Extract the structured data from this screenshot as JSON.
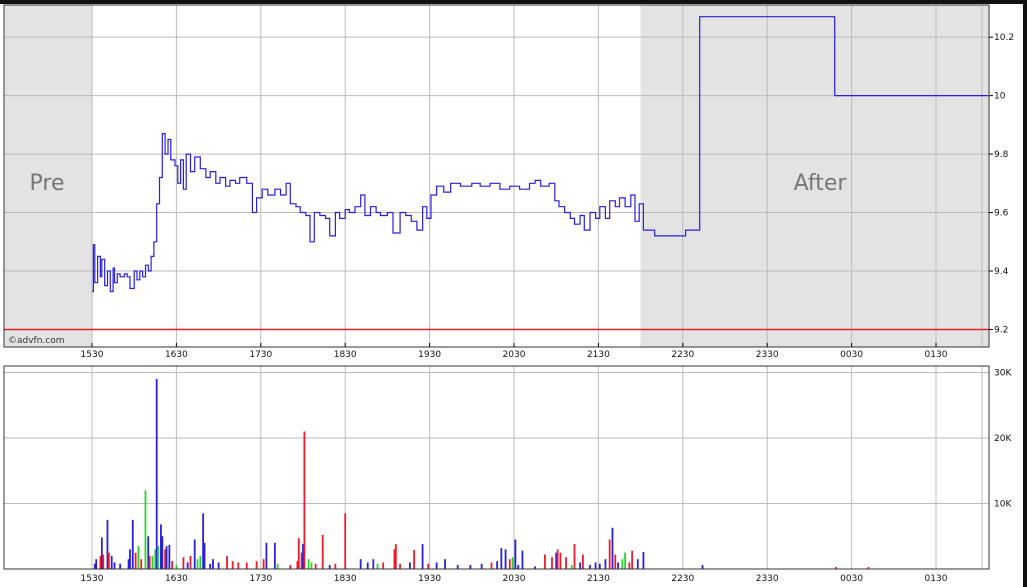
{
  "chart_data": [
    {
      "type": "line",
      "step": true,
      "panel": "price",
      "x_axis": {
        "ticks": [
          "1530",
          "1630",
          "1730",
          "1830",
          "1930",
          "2030",
          "2130",
          "2230",
          "2330",
          "0030",
          "0130"
        ]
      },
      "y_axis": {
        "ticks": [
          9.2,
          9.4,
          9.6,
          9.8,
          10,
          10.2
        ],
        "tick_labels": [
          "9.2",
          "9.4",
          "9.6",
          "9.8",
          "10",
          "10.2"
        ],
        "range": [
          9.14,
          10.31
        ],
        "position": "right"
      },
      "grid": true,
      "sessions": [
        {
          "label": "Pre",
          "start": "14:28",
          "end": "15:30",
          "color": "#e3e3e3"
        },
        {
          "label": "After",
          "start": "22:00",
          "end": "02:15",
          "color": "#e3e3e3"
        }
      ],
      "reference_line": {
        "value": 9.2,
        "color": "#e8202a"
      },
      "line_color": "#2a1fe0",
      "credit": "©advfn.com",
      "points": [
        [
          "15:30",
          9.33
        ],
        [
          "15:31",
          9.49
        ],
        [
          "15:32",
          9.36
        ],
        [
          "15:34",
          9.45
        ],
        [
          "15:36",
          9.38
        ],
        [
          "15:37",
          9.44
        ],
        [
          "15:39",
          9.35
        ],
        [
          "15:41",
          9.4
        ],
        [
          "15:43",
          9.33
        ],
        [
          "15:45",
          9.41
        ],
        [
          "15:46",
          9.36
        ],
        [
          "15:48",
          9.39
        ],
        [
          "15:50",
          9.38
        ],
        [
          "15:53",
          9.39
        ],
        [
          "15:55",
          9.38
        ],
        [
          "15:57",
          9.34
        ],
        [
          "16:00",
          9.4
        ],
        [
          "16:02",
          9.37
        ],
        [
          "16:04",
          9.4
        ],
        [
          "16:06",
          9.38
        ],
        [
          "16:08",
          9.42
        ],
        [
          "16:10",
          9.4
        ],
        [
          "16:12",
          9.45
        ],
        [
          "16:14",
          9.5
        ],
        [
          "16:16",
          9.63
        ],
        [
          "16:18",
          9.72
        ],
        [
          "16:20",
          9.87
        ],
        [
          "16:22",
          9.8
        ],
        [
          "16:24",
          9.85
        ],
        [
          "16:26",
          9.78
        ],
        [
          "16:29",
          9.76
        ],
        [
          "16:31",
          9.7
        ],
        [
          "16:33",
          9.78
        ],
        [
          "16:35",
          9.68
        ],
        [
          "16:37",
          9.8
        ],
        [
          "16:40",
          9.74
        ],
        [
          "16:43",
          9.79
        ],
        [
          "16:47",
          9.75
        ],
        [
          "16:51",
          9.72
        ],
        [
          "16:54",
          9.74
        ],
        [
          "16:58",
          9.7
        ],
        [
          "17:01",
          9.72
        ],
        [
          "17:05",
          9.69
        ],
        [
          "17:08",
          9.71
        ],
        [
          "17:12",
          9.7
        ],
        [
          "17:15",
          9.72
        ],
        [
          "17:20",
          9.7
        ],
        [
          "17:24",
          9.6
        ],
        [
          "17:27",
          9.65
        ],
        [
          "17:31",
          9.68
        ],
        [
          "17:35",
          9.66
        ],
        [
          "17:40",
          9.68
        ],
        [
          "17:44",
          9.66
        ],
        [
          "17:48",
          9.7
        ],
        [
          "17:51",
          9.63
        ],
        [
          "17:55",
          9.62
        ],
        [
          "17:58",
          9.6
        ],
        [
          "18:02",
          9.59
        ],
        [
          "18:05",
          9.5
        ],
        [
          "18:08",
          9.6
        ],
        [
          "18:12",
          9.59
        ],
        [
          "18:16",
          9.58
        ],
        [
          "18:19",
          9.52
        ],
        [
          "18:23",
          9.6
        ],
        [
          "18:26",
          9.58
        ],
        [
          "18:30",
          9.61
        ],
        [
          "18:33",
          9.6
        ],
        [
          "18:37",
          9.62
        ],
        [
          "18:41",
          9.66
        ],
        [
          "18:44",
          9.59
        ],
        [
          "18:48",
          9.62
        ],
        [
          "18:52",
          9.6
        ],
        [
          "18:55",
          9.59
        ],
        [
          "19:00",
          9.6
        ],
        [
          "19:04",
          9.53
        ],
        [
          "19:09",
          9.6
        ],
        [
          "19:13",
          9.59
        ],
        [
          "19:17",
          9.57
        ],
        [
          "19:21",
          9.54
        ],
        [
          "19:25",
          9.62
        ],
        [
          "19:28",
          9.58
        ],
        [
          "19:31",
          9.66
        ],
        [
          "19:35",
          9.69
        ],
        [
          "19:40",
          9.67
        ],
        [
          "19:45",
          9.7
        ],
        [
          "19:52",
          9.69
        ],
        [
          "20:00",
          9.7
        ],
        [
          "20:06",
          9.69
        ],
        [
          "20:13",
          9.7
        ],
        [
          "20:20",
          9.68
        ],
        [
          "20:27",
          9.69
        ],
        [
          "20:34",
          9.68
        ],
        [
          "20:41",
          9.7
        ],
        [
          "20:45",
          9.71
        ],
        [
          "20:49",
          9.69
        ],
        [
          "20:55",
          9.7
        ],
        [
          "20:59",
          9.64
        ],
        [
          "21:02",
          9.62
        ],
        [
          "21:06",
          9.6
        ],
        [
          "21:10",
          9.58
        ],
        [
          "21:13",
          9.56
        ],
        [
          "21:17",
          9.59
        ],
        [
          "21:20",
          9.54
        ],
        [
          "21:24",
          9.6
        ],
        [
          "21:28",
          9.58
        ],
        [
          "21:31",
          9.62
        ],
        [
          "21:35",
          9.58
        ],
        [
          "21:38",
          9.64
        ],
        [
          "21:42",
          9.62
        ],
        [
          "21:45",
          9.65
        ],
        [
          "21:49",
          9.62
        ],
        [
          "21:53",
          9.66
        ],
        [
          "21:56",
          9.57
        ],
        [
          "21:59",
          9.63
        ],
        [
          "22:02",
          9.54
        ],
        [
          "22:10",
          9.52
        ],
        [
          "22:32",
          9.54
        ],
        [
          "22:42",
          10.27
        ],
        [
          "00:18",
          10.0
        ],
        [
          "02:07",
          10.0
        ]
      ]
    },
    {
      "type": "bar",
      "panel": "volume",
      "x_axis": {
        "ticks": [
          "1530",
          "1630",
          "1730",
          "1830",
          "1930",
          "2030",
          "2130",
          "2230",
          "2330",
          "0030",
          "0130"
        ]
      },
      "y_axis": {
        "ticks": [
          10000,
          20000,
          30000
        ],
        "tick_labels": [
          "10K",
          "20K",
          "30K"
        ],
        "range": [
          0,
          31000
        ],
        "position": "right"
      },
      "grid": true,
      "colors": {
        "blue": "#2a1fe0",
        "red": "#ee1c2a",
        "green": "#2ad42a"
      },
      "bars": [
        [
          "15:32",
          800,
          "blue"
        ],
        [
          "15:33",
          1500,
          "blue"
        ],
        [
          "15:36",
          2000,
          "red"
        ],
        [
          "15:37",
          4800,
          "blue"
        ],
        [
          "15:38",
          2200,
          "red"
        ],
        [
          "15:41",
          7500,
          "blue"
        ],
        [
          "15:42",
          2500,
          "red"
        ],
        [
          "15:44",
          2000,
          "blue"
        ],
        [
          "15:46",
          1000,
          "blue"
        ],
        [
          "15:50",
          800,
          "blue"
        ],
        [
          "15:56",
          1500,
          "blue"
        ],
        [
          "15:57",
          3000,
          "blue"
        ],
        [
          "15:59",
          7500,
          "blue"
        ],
        [
          "16:01",
          2500,
          "red"
        ],
        [
          "16:03",
          3500,
          "green"
        ],
        [
          "16:05",
          1500,
          "red"
        ],
        [
          "16:08",
          12000,
          "green"
        ],
        [
          "16:10",
          5000,
          "blue"
        ],
        [
          "16:11",
          2000,
          "red"
        ],
        [
          "16:13",
          2000,
          "green"
        ],
        [
          "16:15",
          3000,
          "green"
        ],
        [
          "16:16",
          29000,
          "blue"
        ],
        [
          "16:17",
          3500,
          "green"
        ],
        [
          "16:19",
          6800,
          "blue"
        ],
        [
          "16:20",
          5000,
          "blue"
        ],
        [
          "16:22",
          3000,
          "red"
        ],
        [
          "16:23",
          3500,
          "blue"
        ],
        [
          "16:25",
          3700,
          "blue"
        ],
        [
          "16:27",
          1200,
          "red"
        ],
        [
          "16:30",
          600,
          "green"
        ],
        [
          "16:35",
          1800,
          "red"
        ],
        [
          "16:38",
          1000,
          "blue"
        ],
        [
          "16:40",
          2000,
          "red"
        ],
        [
          "16:43",
          4500,
          "blue"
        ],
        [
          "16:45",
          1500,
          "green"
        ],
        [
          "16:47",
          2000,
          "green"
        ],
        [
          "16:49",
          8500,
          "blue"
        ],
        [
          "16:50",
          4000,
          "blue"
        ],
        [
          "16:54",
          800,
          "blue"
        ],
        [
          "16:56",
          1500,
          "blue"
        ],
        [
          "17:00",
          1000,
          "blue"
        ],
        [
          "17:06",
          2000,
          "red"
        ],
        [
          "17:10",
          1200,
          "red"
        ],
        [
          "17:14",
          1000,
          "red"
        ],
        [
          "17:20",
          1000,
          "red"
        ],
        [
          "17:27",
          1200,
          "red"
        ],
        [
          "17:32",
          1500,
          "red"
        ],
        [
          "17:34",
          4000,
          "blue"
        ],
        [
          "17:40",
          4000,
          "blue"
        ],
        [
          "17:42",
          800,
          "green"
        ],
        [
          "17:51",
          600,
          "red"
        ],
        [
          "17:56",
          1200,
          "red"
        ],
        [
          "17:57",
          4700,
          "red"
        ],
        [
          "17:59",
          2500,
          "red"
        ],
        [
          "18:00",
          3800,
          "blue"
        ],
        [
          "18:01",
          21000,
          "red"
        ],
        [
          "18:04",
          1500,
          "green"
        ],
        [
          "18:06",
          1000,
          "green"
        ],
        [
          "18:09",
          800,
          "red"
        ],
        [
          "18:14",
          5200,
          "red"
        ],
        [
          "18:19",
          600,
          "blue"
        ],
        [
          "18:23",
          800,
          "red"
        ],
        [
          "18:30",
          8500,
          "red"
        ],
        [
          "18:41",
          1500,
          "blue"
        ],
        [
          "18:46",
          1000,
          "blue"
        ],
        [
          "18:50",
          1500,
          "blue"
        ],
        [
          "18:53",
          800,
          "green"
        ],
        [
          "18:57",
          1000,
          "red"
        ],
        [
          "19:05",
          3000,
          "red"
        ],
        [
          "19:06",
          3800,
          "red"
        ],
        [
          "19:09",
          800,
          "red"
        ],
        [
          "19:16",
          1000,
          "blue"
        ],
        [
          "19:19",
          2900,
          "red"
        ],
        [
          "19:25",
          3800,
          "blue"
        ],
        [
          "19:29",
          800,
          "red"
        ],
        [
          "19:35",
          1000,
          "blue"
        ],
        [
          "19:41",
          1500,
          "blue"
        ],
        [
          "19:50",
          600,
          "blue"
        ],
        [
          "19:59",
          600,
          "blue"
        ],
        [
          "20:07",
          800,
          "blue"
        ],
        [
          "20:14",
          1000,
          "red"
        ],
        [
          "20:18",
          1200,
          "blue"
        ],
        [
          "20:21",
          3200,
          "blue"
        ],
        [
          "20:24",
          3000,
          "blue"
        ],
        [
          "20:27",
          1500,
          "red"
        ],
        [
          "20:29",
          1800,
          "green"
        ],
        [
          "20:31",
          4500,
          "blue"
        ],
        [
          "20:33",
          600,
          "blue"
        ],
        [
          "20:36",
          2800,
          "blue"
        ],
        [
          "20:45",
          400,
          "blue"
        ],
        [
          "20:52",
          2200,
          "red"
        ],
        [
          "20:57",
          1800,
          "red"
        ],
        [
          "21:00",
          2500,
          "blue"
        ],
        [
          "21:01",
          3000,
          "red"
        ],
        [
          "21:03",
          2500,
          "red"
        ],
        [
          "21:07",
          1800,
          "red"
        ],
        [
          "21:11",
          600,
          "green"
        ],
        [
          "21:13",
          3800,
          "red"
        ],
        [
          "21:17",
          1000,
          "blue"
        ],
        [
          "21:19",
          2200,
          "red"
        ],
        [
          "21:24",
          600,
          "blue"
        ],
        [
          "21:28",
          1000,
          "blue"
        ],
        [
          "21:31",
          800,
          "blue"
        ],
        [
          "21:35",
          1500,
          "blue"
        ],
        [
          "21:38",
          4500,
          "red"
        ],
        [
          "21:40",
          6300,
          "blue"
        ],
        [
          "21:42",
          2200,
          "red"
        ],
        [
          "21:44",
          1000,
          "blue"
        ],
        [
          "21:47",
          1500,
          "green"
        ],
        [
          "21:49",
          2500,
          "green"
        ],
        [
          "21:52",
          1000,
          "red"
        ],
        [
          "21:54",
          2800,
          "red"
        ],
        [
          "21:58",
          1500,
          "blue"
        ],
        [
          "22:02",
          2600,
          "blue"
        ],
        [
          "22:44",
          600,
          "blue"
        ],
        [
          "00:19",
          300,
          "red"
        ],
        [
          "00:42",
          300,
          "red"
        ]
      ]
    }
  ]
}
